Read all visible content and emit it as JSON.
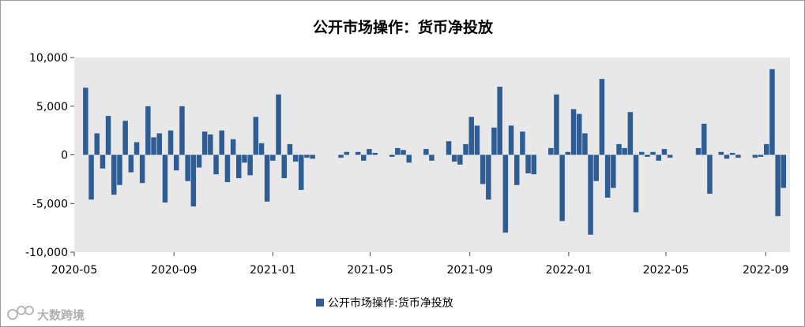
{
  "watermark": "大数跨境",
  "chart_data": {
    "type": "bar",
    "title": "公开市场操作：货币净投放",
    "xlabel": "",
    "ylabel": "",
    "ylim": [
      -10000,
      10000
    ],
    "yticks": [
      10000,
      5000,
      0,
      -5000,
      -10000
    ],
    "ytick_labels": [
      "10,000",
      "5,000",
      "0",
      "-5,000",
      "-10,000"
    ],
    "xlim": [
      "2020-05-01",
      "2022-10-01"
    ],
    "xticks": [
      "2020-05",
      "2020-09",
      "2021-01",
      "2021-05",
      "2021-09",
      "2022-01",
      "2022-05",
      "2022-09"
    ],
    "grid": false,
    "legend_position": "bottom",
    "colors": {
      "bar": "#2e5d96",
      "plot_bg": "#e8e8e8",
      "outer_border": "#9a9a9a"
    },
    "series": [
      {
        "name": "公开市场操作:货币净投放",
        "points": [
          {
            "date": "2020-05-15",
            "value": 6900
          },
          {
            "date": "2020-05-22",
            "value": -4600
          },
          {
            "date": "2020-05-29",
            "value": 2200
          },
          {
            "date": "2020-06-05",
            "value": -1400
          },
          {
            "date": "2020-06-12",
            "value": 4000
          },
          {
            "date": "2020-06-19",
            "value": -4100
          },
          {
            "date": "2020-06-26",
            "value": -3100
          },
          {
            "date": "2020-07-03",
            "value": 3500
          },
          {
            "date": "2020-07-10",
            "value": -1800
          },
          {
            "date": "2020-07-17",
            "value": 1300
          },
          {
            "date": "2020-07-24",
            "value": -2900
          },
          {
            "date": "2020-07-31",
            "value": 5000
          },
          {
            "date": "2020-08-07",
            "value": 1800
          },
          {
            "date": "2020-08-14",
            "value": 2200
          },
          {
            "date": "2020-08-21",
            "value": -4900
          },
          {
            "date": "2020-08-28",
            "value": 2500
          },
          {
            "date": "2020-09-04",
            "value": -1600
          },
          {
            "date": "2020-09-11",
            "value": 5000
          },
          {
            "date": "2020-09-18",
            "value": -2700
          },
          {
            "date": "2020-09-25",
            "value": -5300
          },
          {
            "date": "2020-10-02",
            "value": -1300
          },
          {
            "date": "2020-10-09",
            "value": 2400
          },
          {
            "date": "2020-10-16",
            "value": 2100
          },
          {
            "date": "2020-10-23",
            "value": -2000
          },
          {
            "date": "2020-10-30",
            "value": 2500
          },
          {
            "date": "2020-11-06",
            "value": -2800
          },
          {
            "date": "2020-11-13",
            "value": 1600
          },
          {
            "date": "2020-11-20",
            "value": -2400
          },
          {
            "date": "2020-11-27",
            "value": -800
          },
          {
            "date": "2020-12-04",
            "value": -2100
          },
          {
            "date": "2020-12-11",
            "value": 3900
          },
          {
            "date": "2020-12-18",
            "value": 1200
          },
          {
            "date": "2020-12-25",
            "value": -4800
          },
          {
            "date": "2021-01-01",
            "value": -600
          },
          {
            "date": "2021-01-08",
            "value": 6200
          },
          {
            "date": "2021-01-15",
            "value": -2400
          },
          {
            "date": "2021-01-22",
            "value": 1100
          },
          {
            "date": "2021-01-29",
            "value": -700
          },
          {
            "date": "2021-02-05",
            "value": -3600
          },
          {
            "date": "2021-02-12",
            "value": -300
          },
          {
            "date": "2021-02-19",
            "value": -400
          },
          {
            "date": "2021-03-26",
            "value": -300
          },
          {
            "date": "2021-04-02",
            "value": 300
          },
          {
            "date": "2021-04-16",
            "value": 300
          },
          {
            "date": "2021-04-23",
            "value": -600
          },
          {
            "date": "2021-04-30",
            "value": 600
          },
          {
            "date": "2021-05-07",
            "value": 200
          },
          {
            "date": "2021-05-28",
            "value": -200
          },
          {
            "date": "2021-06-04",
            "value": 700
          },
          {
            "date": "2021-06-11",
            "value": 500
          },
          {
            "date": "2021-06-18",
            "value": -800
          },
          {
            "date": "2021-07-09",
            "value": 600
          },
          {
            "date": "2021-07-16",
            "value": -600
          },
          {
            "date": "2021-08-06",
            "value": 1400
          },
          {
            "date": "2021-08-13",
            "value": -700
          },
          {
            "date": "2021-08-20",
            "value": -1000
          },
          {
            "date": "2021-08-27",
            "value": 1100
          },
          {
            "date": "2021-09-03",
            "value": 3900
          },
          {
            "date": "2021-09-10",
            "value": 3000
          },
          {
            "date": "2021-09-17",
            "value": -3000
          },
          {
            "date": "2021-09-24",
            "value": -4600
          },
          {
            "date": "2021-10-01",
            "value": 2800
          },
          {
            "date": "2021-10-08",
            "value": 7000
          },
          {
            "date": "2021-10-15",
            "value": -8000
          },
          {
            "date": "2021-10-22",
            "value": 3000
          },
          {
            "date": "2021-10-29",
            "value": -3100
          },
          {
            "date": "2021-11-05",
            "value": 2400
          },
          {
            "date": "2021-11-12",
            "value": -1900
          },
          {
            "date": "2021-11-19",
            "value": -2000
          },
          {
            "date": "2021-12-10",
            "value": 700
          },
          {
            "date": "2021-12-17",
            "value": 6200
          },
          {
            "date": "2021-12-24",
            "value": -6800
          },
          {
            "date": "2021-12-31",
            "value": 300
          },
          {
            "date": "2022-01-07",
            "value": 4700
          },
          {
            "date": "2022-01-14",
            "value": 4200
          },
          {
            "date": "2022-01-21",
            "value": 2200
          },
          {
            "date": "2022-01-28",
            "value": -8200
          },
          {
            "date": "2022-02-04",
            "value": -2700
          },
          {
            "date": "2022-02-11",
            "value": 7800
          },
          {
            "date": "2022-02-18",
            "value": -4400
          },
          {
            "date": "2022-02-25",
            "value": -3400
          },
          {
            "date": "2022-03-04",
            "value": 1100
          },
          {
            "date": "2022-03-11",
            "value": 700
          },
          {
            "date": "2022-03-18",
            "value": 4400
          },
          {
            "date": "2022-03-25",
            "value": -5900
          },
          {
            "date": "2022-04-01",
            "value": 300
          },
          {
            "date": "2022-04-08",
            "value": -200
          },
          {
            "date": "2022-04-15",
            "value": 300
          },
          {
            "date": "2022-04-22",
            "value": -600
          },
          {
            "date": "2022-04-29",
            "value": 600
          },
          {
            "date": "2022-05-06",
            "value": -300
          },
          {
            "date": "2022-06-10",
            "value": 700
          },
          {
            "date": "2022-06-17",
            "value": 3200
          },
          {
            "date": "2022-06-24",
            "value": -4000
          },
          {
            "date": "2022-07-08",
            "value": 300
          },
          {
            "date": "2022-07-15",
            "value": -400
          },
          {
            "date": "2022-07-22",
            "value": 200
          },
          {
            "date": "2022-07-29",
            "value": -300
          },
          {
            "date": "2022-08-19",
            "value": -300
          },
          {
            "date": "2022-08-26",
            "value": -200
          },
          {
            "date": "2022-09-02",
            "value": 1100
          },
          {
            "date": "2022-09-09",
            "value": 8800
          },
          {
            "date": "2022-09-16",
            "value": -6300
          },
          {
            "date": "2022-09-23",
            "value": -3400
          }
        ]
      }
    ]
  }
}
